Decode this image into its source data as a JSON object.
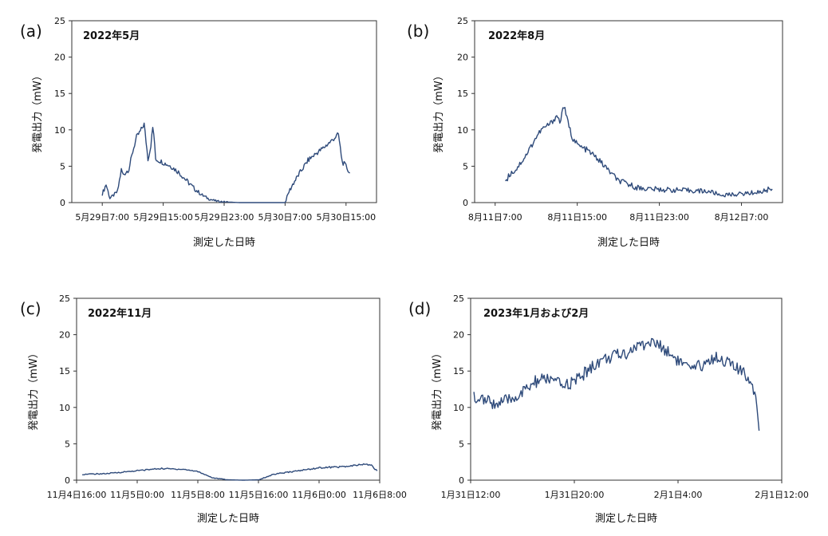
{
  "chart_data": [
    {
      "type": "line",
      "panel_label": "(a)",
      "title": "2022年5月",
      "xlabel": "測定した日時",
      "ylabel": "発電出力（mW）",
      "ylim": [
        0,
        25
      ],
      "yticks": [
        "0",
        "5",
        "10",
        "15",
        "20",
        "25"
      ],
      "xlim": [
        "2022-05-29T03:00",
        "2022-05-30T19:00"
      ],
      "xticks": [
        {
          "t": "2022-05-29T07:00",
          "label": "5月29日7:00"
        },
        {
          "t": "2022-05-29T15:00",
          "label": "5月29日15:00"
        },
        {
          "t": "2022-05-29T23:00",
          "label": "5月29日23:00"
        },
        {
          "t": "2022-05-30T07:00",
          "label": "5月30日7:00"
        },
        {
          "t": "2022-05-30T15:00",
          "label": "5月30日15:00"
        }
      ],
      "grid": false,
      "series": [
        {
          "x": [
            "2022-05-29T07:00",
            "2022-05-29T07:30",
            "2022-05-29T08:00",
            "2022-05-29T08:15",
            "2022-05-29T09:00",
            "2022-05-29T09:30",
            "2022-05-29T09:45",
            "2022-05-29T10:30",
            "2022-05-29T11:00",
            "2022-05-29T11:30",
            "2022-05-29T12:00",
            "2022-05-29T12:30",
            "2022-05-29T13:00",
            "2022-05-29T13:20",
            "2022-05-29T13:40",
            "2022-05-29T14:00",
            "2022-05-29T14:20",
            "2022-05-29T14:40",
            "2022-05-29T15:00",
            "2022-05-29T16:00",
            "2022-05-29T17:00",
            "2022-05-29T18:00",
            "2022-05-29T19:00",
            "2022-05-29T20:00",
            "2022-05-29T21:00",
            "2022-05-29T22:00",
            "2022-05-29T23:00",
            "2022-05-30T01:00",
            "2022-05-30T04:00",
            "2022-05-30T06:00",
            "2022-05-30T07:00",
            "2022-05-30T07:30",
            "2022-05-30T08:00",
            "2022-05-30T09:00",
            "2022-05-30T10:00",
            "2022-05-30T11:00",
            "2022-05-30T12:00",
            "2022-05-30T13:00",
            "2022-05-30T13:30",
            "2022-05-30T14:00",
            "2022-05-30T14:30",
            "2022-05-30T15:00",
            "2022-05-30T15:30"
          ],
          "values": [
            1.2,
            2.5,
            0.6,
            0.8,
            1.5,
            4.5,
            3.8,
            4.6,
            7.0,
            9.0,
            9.8,
            10.8,
            6.0,
            7.5,
            10.7,
            6.0,
            5.8,
            5.7,
            5.5,
            5.0,
            4.2,
            3.1,
            2.0,
            1.1,
            0.5,
            0.2,
            0.1,
            0.0,
            0.0,
            0.0,
            0.0,
            1.5,
            2.5,
            4.2,
            5.8,
            6.7,
            7.5,
            8.4,
            8.9,
            9.4,
            5.6,
            5.0,
            4.0
          ]
        }
      ]
    },
    {
      "type": "line",
      "panel_label": "(b)",
      "title": "2022年8月",
      "xlabel": "測定した日時",
      "ylabel": "発電出力（mW）",
      "ylim": [
        0,
        25
      ],
      "yticks": [
        "0",
        "5",
        "10",
        "15",
        "20",
        "25"
      ],
      "xlim": [
        "2022-08-11T05:00",
        "2022-08-12T11:00"
      ],
      "xticks": [
        {
          "t": "2022-08-11T07:00",
          "label": "8月11日7:00"
        },
        {
          "t": "2022-08-11T15:00",
          "label": "8月11日15:00"
        },
        {
          "t": "2022-08-11T23:00",
          "label": "8月11日23:00"
        },
        {
          "t": "2022-08-12T07:00",
          "label": "8月12日7:00"
        }
      ],
      "grid": false,
      "series": [
        {
          "x": [
            "2022-08-11T08:00",
            "2022-08-11T08:30",
            "2022-08-11T09:00",
            "2022-08-11T10:00",
            "2022-08-11T11:00",
            "2022-08-11T11:30",
            "2022-08-11T12:00",
            "2022-08-11T12:30",
            "2022-08-11T13:00",
            "2022-08-11T13:20",
            "2022-08-11T13:40",
            "2022-08-11T14:00",
            "2022-08-11T14:30",
            "2022-08-11T15:00",
            "2022-08-11T15:30",
            "2022-08-11T16:00",
            "2022-08-11T17:00",
            "2022-08-11T18:00",
            "2022-08-11T19:00",
            "2022-08-11T20:00",
            "2022-08-11T21:00",
            "2022-08-11T23:00",
            "2022-08-12T01:00",
            "2022-08-12T03:00",
            "2022-08-12T04:00",
            "2022-08-12T05:00",
            "2022-08-12T07:00",
            "2022-08-12T09:00",
            "2022-08-12T10:00"
          ],
          "values": [
            3.0,
            4.0,
            4.5,
            6.5,
            9.0,
            10.0,
            10.5,
            11.0,
            12.0,
            11.0,
            13.5,
            11.5,
            9.0,
            8.0,
            7.5,
            7.2,
            6.0,
            4.5,
            3.0,
            2.5,
            2.0,
            1.8,
            1.7,
            1.6,
            1.5,
            1.0,
            1.2,
            1.5,
            2.0
          ]
        }
      ]
    },
    {
      "type": "line",
      "panel_label": "(c)",
      "title": "2022年11月",
      "xlabel": "測定した日時",
      "ylabel": "発電出力（mW）",
      "ylim": [
        0,
        25
      ],
      "yticks": [
        "0",
        "5",
        "10",
        "15",
        "20",
        "25"
      ],
      "xlim": [
        "2022-11-04T16:00",
        "2022-11-06T08:00"
      ],
      "xticks": [
        {
          "t": "2022-11-04T16:00",
          "label": "11月4日16:00"
        },
        {
          "t": "2022-11-05T00:00",
          "label": "11月5日0:00"
        },
        {
          "t": "2022-11-05T08:00",
          "label": "11月5日8:00"
        },
        {
          "t": "2022-11-05T16:00",
          "label": "11月5日16:00"
        },
        {
          "t": "2022-11-06T00:00",
          "label": "11月6日0:00"
        },
        {
          "t": "2022-11-06T08:00",
          "label": "11月6日8:00"
        }
      ],
      "grid": false,
      "series": [
        {
          "x": [
            "2022-11-04T16:45",
            "2022-11-04T20:00",
            "2022-11-05T00:00",
            "2022-11-05T03:00",
            "2022-11-05T06:00",
            "2022-11-05T08:00",
            "2022-11-05T10:00",
            "2022-11-05T12:00",
            "2022-11-05T14:00",
            "2022-11-05T16:00",
            "2022-11-05T18:00",
            "2022-11-05T20:00",
            "2022-11-06T00:00",
            "2022-11-06T04:00",
            "2022-11-06T06:00",
            "2022-11-06T07:00",
            "2022-11-06T07:40"
          ],
          "values": [
            0.8,
            0.9,
            1.3,
            1.6,
            1.5,
            1.2,
            0.3,
            0.05,
            0.0,
            0.05,
            0.8,
            1.1,
            1.7,
            1.9,
            2.2,
            2.0,
            1.2
          ]
        }
      ]
    },
    {
      "type": "line",
      "panel_label": "(d)",
      "title": "2023年1月および2月",
      "xlabel": "測定した日時",
      "ylabel": "発電出力（mW）",
      "ylim": [
        0,
        25
      ],
      "yticks": [
        "0",
        "5",
        "10",
        "15",
        "20",
        "25"
      ],
      "xlim": [
        "2023-01-31T12:00",
        "2023-02-01T12:00"
      ],
      "xticks": [
        {
          "t": "2023-01-31T12:00",
          "label": "1月31日12:00"
        },
        {
          "t": "2023-01-31T20:00",
          "label": "1月31日20:00"
        },
        {
          "t": "2023-02-01T04:00",
          "label": "2月1日4:00"
        },
        {
          "t": "2023-02-01T12:00",
          "label": "2月1日12:00"
        }
      ],
      "grid": false,
      "series": [
        {
          "x": [
            "2023-01-31T12:15",
            "2023-01-31T13:00",
            "2023-01-31T14:00",
            "2023-01-31T15:00",
            "2023-01-31T16:00",
            "2023-01-31T17:00",
            "2023-01-31T18:00",
            "2023-01-31T19:00",
            "2023-01-31T20:00",
            "2023-01-31T21:00",
            "2023-01-31T22:00",
            "2023-01-31T23:00",
            "2023-02-01T00:00",
            "2023-02-01T01:00",
            "2023-02-01T02:00",
            "2023-02-01T03:00",
            "2023-02-01T04:00",
            "2023-02-01T05:00",
            "2023-02-01T06:00",
            "2023-02-01T07:00",
            "2023-02-01T08:00",
            "2023-02-01T08:45",
            "2023-02-01T09:30",
            "2023-02-01T10:00",
            "2023-02-01T10:15"
          ],
          "values": [
            11.5,
            11.0,
            10.5,
            11.0,
            12.0,
            13.5,
            14.0,
            13.0,
            13.5,
            15.0,
            16.5,
            17.0,
            17.5,
            18.5,
            19.0,
            18.0,
            16.5,
            15.0,
            16.0,
            17.0,
            16.0,
            15.0,
            14.0,
            12.0,
            7.0
          ]
        }
      ]
    }
  ]
}
